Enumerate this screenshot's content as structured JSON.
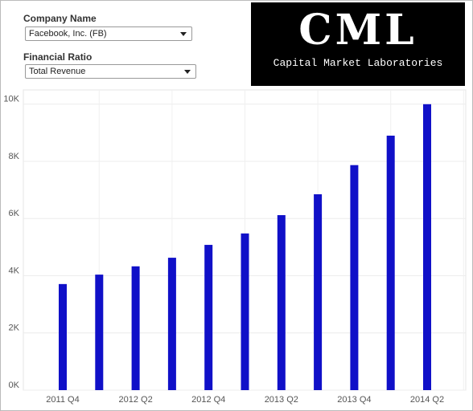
{
  "controls": {
    "company_label": "Company Name",
    "company_value": "Facebook, Inc. (FB)",
    "ratio_label": "Financial Ratio",
    "ratio_value": "Total Revenue"
  },
  "logo": {
    "mark": "CML",
    "text": "Capital Market Laboratories"
  },
  "chart_data": {
    "type": "bar",
    "categories": [
      "2011 Q4",
      null,
      "2012 Q2",
      null,
      "2012 Q4",
      null,
      "2013 Q2",
      null,
      "2013 Q4",
      null,
      "2014 Q2"
    ],
    "values": [
      3710,
      4040,
      4330,
      4630,
      5080,
      5480,
      6120,
      6850,
      7870,
      8900,
      10000
    ],
    "color": "#1010c8",
    "ylim": [
      0,
      10500
    ],
    "yticks": [
      {
        "value": 0,
        "label": "0K"
      },
      {
        "value": 2000,
        "label": "2K"
      },
      {
        "value": 4000,
        "label": "4K"
      },
      {
        "value": 6000,
        "label": "6K"
      },
      {
        "value": 8000,
        "label": "8K"
      },
      {
        "value": 10000,
        "label": "10K"
      }
    ],
    "grid": true
  }
}
